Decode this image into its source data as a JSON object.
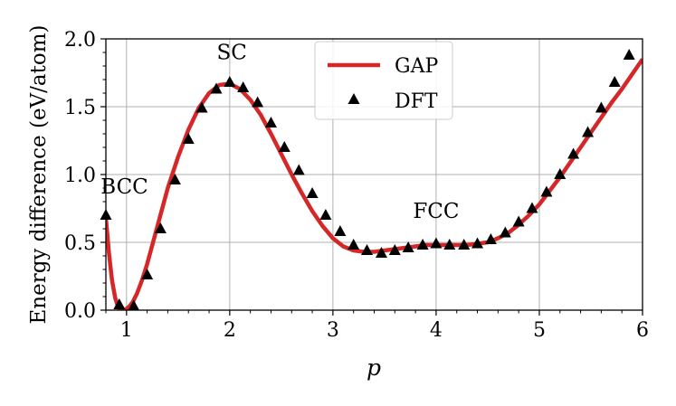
{
  "chart_data": {
    "type": "line",
    "xlabel": "p",
    "ylabel": "Energy difference (eV/atom)",
    "xlim": [
      0.8,
      6.0
    ],
    "ylim": [
      0.0,
      2.0
    ],
    "x_ticks": [
      1,
      2,
      3,
      4,
      5,
      6
    ],
    "y_ticks": [
      0.0,
      0.5,
      1.0,
      1.5,
      2.0
    ],
    "x_tick_labels": [
      "1",
      "2",
      "3",
      "4",
      "5",
      "6"
    ],
    "y_tick_labels": [
      "0.0",
      "0.5",
      "1.0",
      "1.5",
      "2.0"
    ],
    "grid": true,
    "legend_position": "top-center",
    "legend": [
      {
        "label": "GAP",
        "marker": "line",
        "color": "#d62728"
      },
      {
        "label": "DFT",
        "marker": "triangle",
        "color": "#000000"
      }
    ],
    "annotations": [
      {
        "text": "BCC",
        "x": 0.98,
        "y": 0.86
      },
      {
        "text": "SC",
        "x": 2.02,
        "y": 1.85
      },
      {
        "text": "FCC",
        "x": 4.0,
        "y": 0.68
      }
    ],
    "series": [
      {
        "name": "GAP",
        "style": "line",
        "color": "#d62728",
        "x": [
          0.8,
          0.83,
          0.86,
          0.89,
          0.92,
          0.95,
          0.98,
          1.0,
          1.03,
          1.06,
          1.1,
          1.15,
          1.2,
          1.3,
          1.4,
          1.5,
          1.6,
          1.7,
          1.8,
          1.9,
          2.0,
          2.1,
          2.2,
          2.3,
          2.4,
          2.5,
          2.6,
          2.7,
          2.8,
          2.9,
          3.0,
          3.1,
          3.2,
          3.3,
          3.4,
          3.5,
          3.6,
          3.7,
          3.8,
          3.9,
          4.0,
          4.1,
          4.2,
          4.3,
          4.4,
          4.5,
          4.6,
          4.7,
          4.8,
          4.9,
          5.0,
          5.1,
          5.2,
          5.3,
          5.4,
          5.5,
          5.6,
          5.7,
          5.8,
          5.9,
          6.0
        ],
        "y": [
          0.68,
          0.42,
          0.22,
          0.09,
          0.02,
          0.0,
          0.0,
          0.01,
          0.03,
          0.06,
          0.12,
          0.22,
          0.34,
          0.62,
          0.9,
          1.13,
          1.33,
          1.49,
          1.6,
          1.66,
          1.67,
          1.63,
          1.55,
          1.44,
          1.3,
          1.15,
          1.0,
          0.86,
          0.73,
          0.62,
          0.53,
          0.47,
          0.44,
          0.43,
          0.43,
          0.44,
          0.45,
          0.46,
          0.47,
          0.48,
          0.48,
          0.48,
          0.48,
          0.48,
          0.49,
          0.5,
          0.53,
          0.57,
          0.63,
          0.7,
          0.78,
          0.88,
          0.98,
          1.09,
          1.2,
          1.31,
          1.42,
          1.53,
          1.63,
          1.74,
          1.85
        ]
      },
      {
        "name": "DFT",
        "style": "marker",
        "marker": "triangle",
        "color": "#000000",
        "x": [
          0.8,
          0.93,
          1.07,
          1.2,
          1.33,
          1.47,
          1.6,
          1.73,
          1.87,
          2.0,
          2.13,
          2.27,
          2.4,
          2.53,
          2.67,
          2.8,
          2.93,
          3.07,
          3.2,
          3.33,
          3.47,
          3.6,
          3.73,
          3.87,
          4.0,
          4.13,
          4.27,
          4.4,
          4.53,
          4.67,
          4.8,
          4.93,
          5.07,
          5.2,
          5.33,
          5.47,
          5.6,
          5.73,
          5.87
        ],
        "y": [
          0.7,
          0.04,
          0.03,
          0.26,
          0.6,
          0.96,
          1.26,
          1.49,
          1.63,
          1.68,
          1.64,
          1.53,
          1.38,
          1.2,
          1.03,
          0.86,
          0.7,
          0.58,
          0.48,
          0.44,
          0.42,
          0.44,
          0.46,
          0.48,
          0.49,
          0.48,
          0.48,
          0.49,
          0.52,
          0.57,
          0.65,
          0.75,
          0.87,
          1.0,
          1.15,
          1.31,
          1.49,
          1.68,
          1.88
        ]
      }
    ]
  }
}
